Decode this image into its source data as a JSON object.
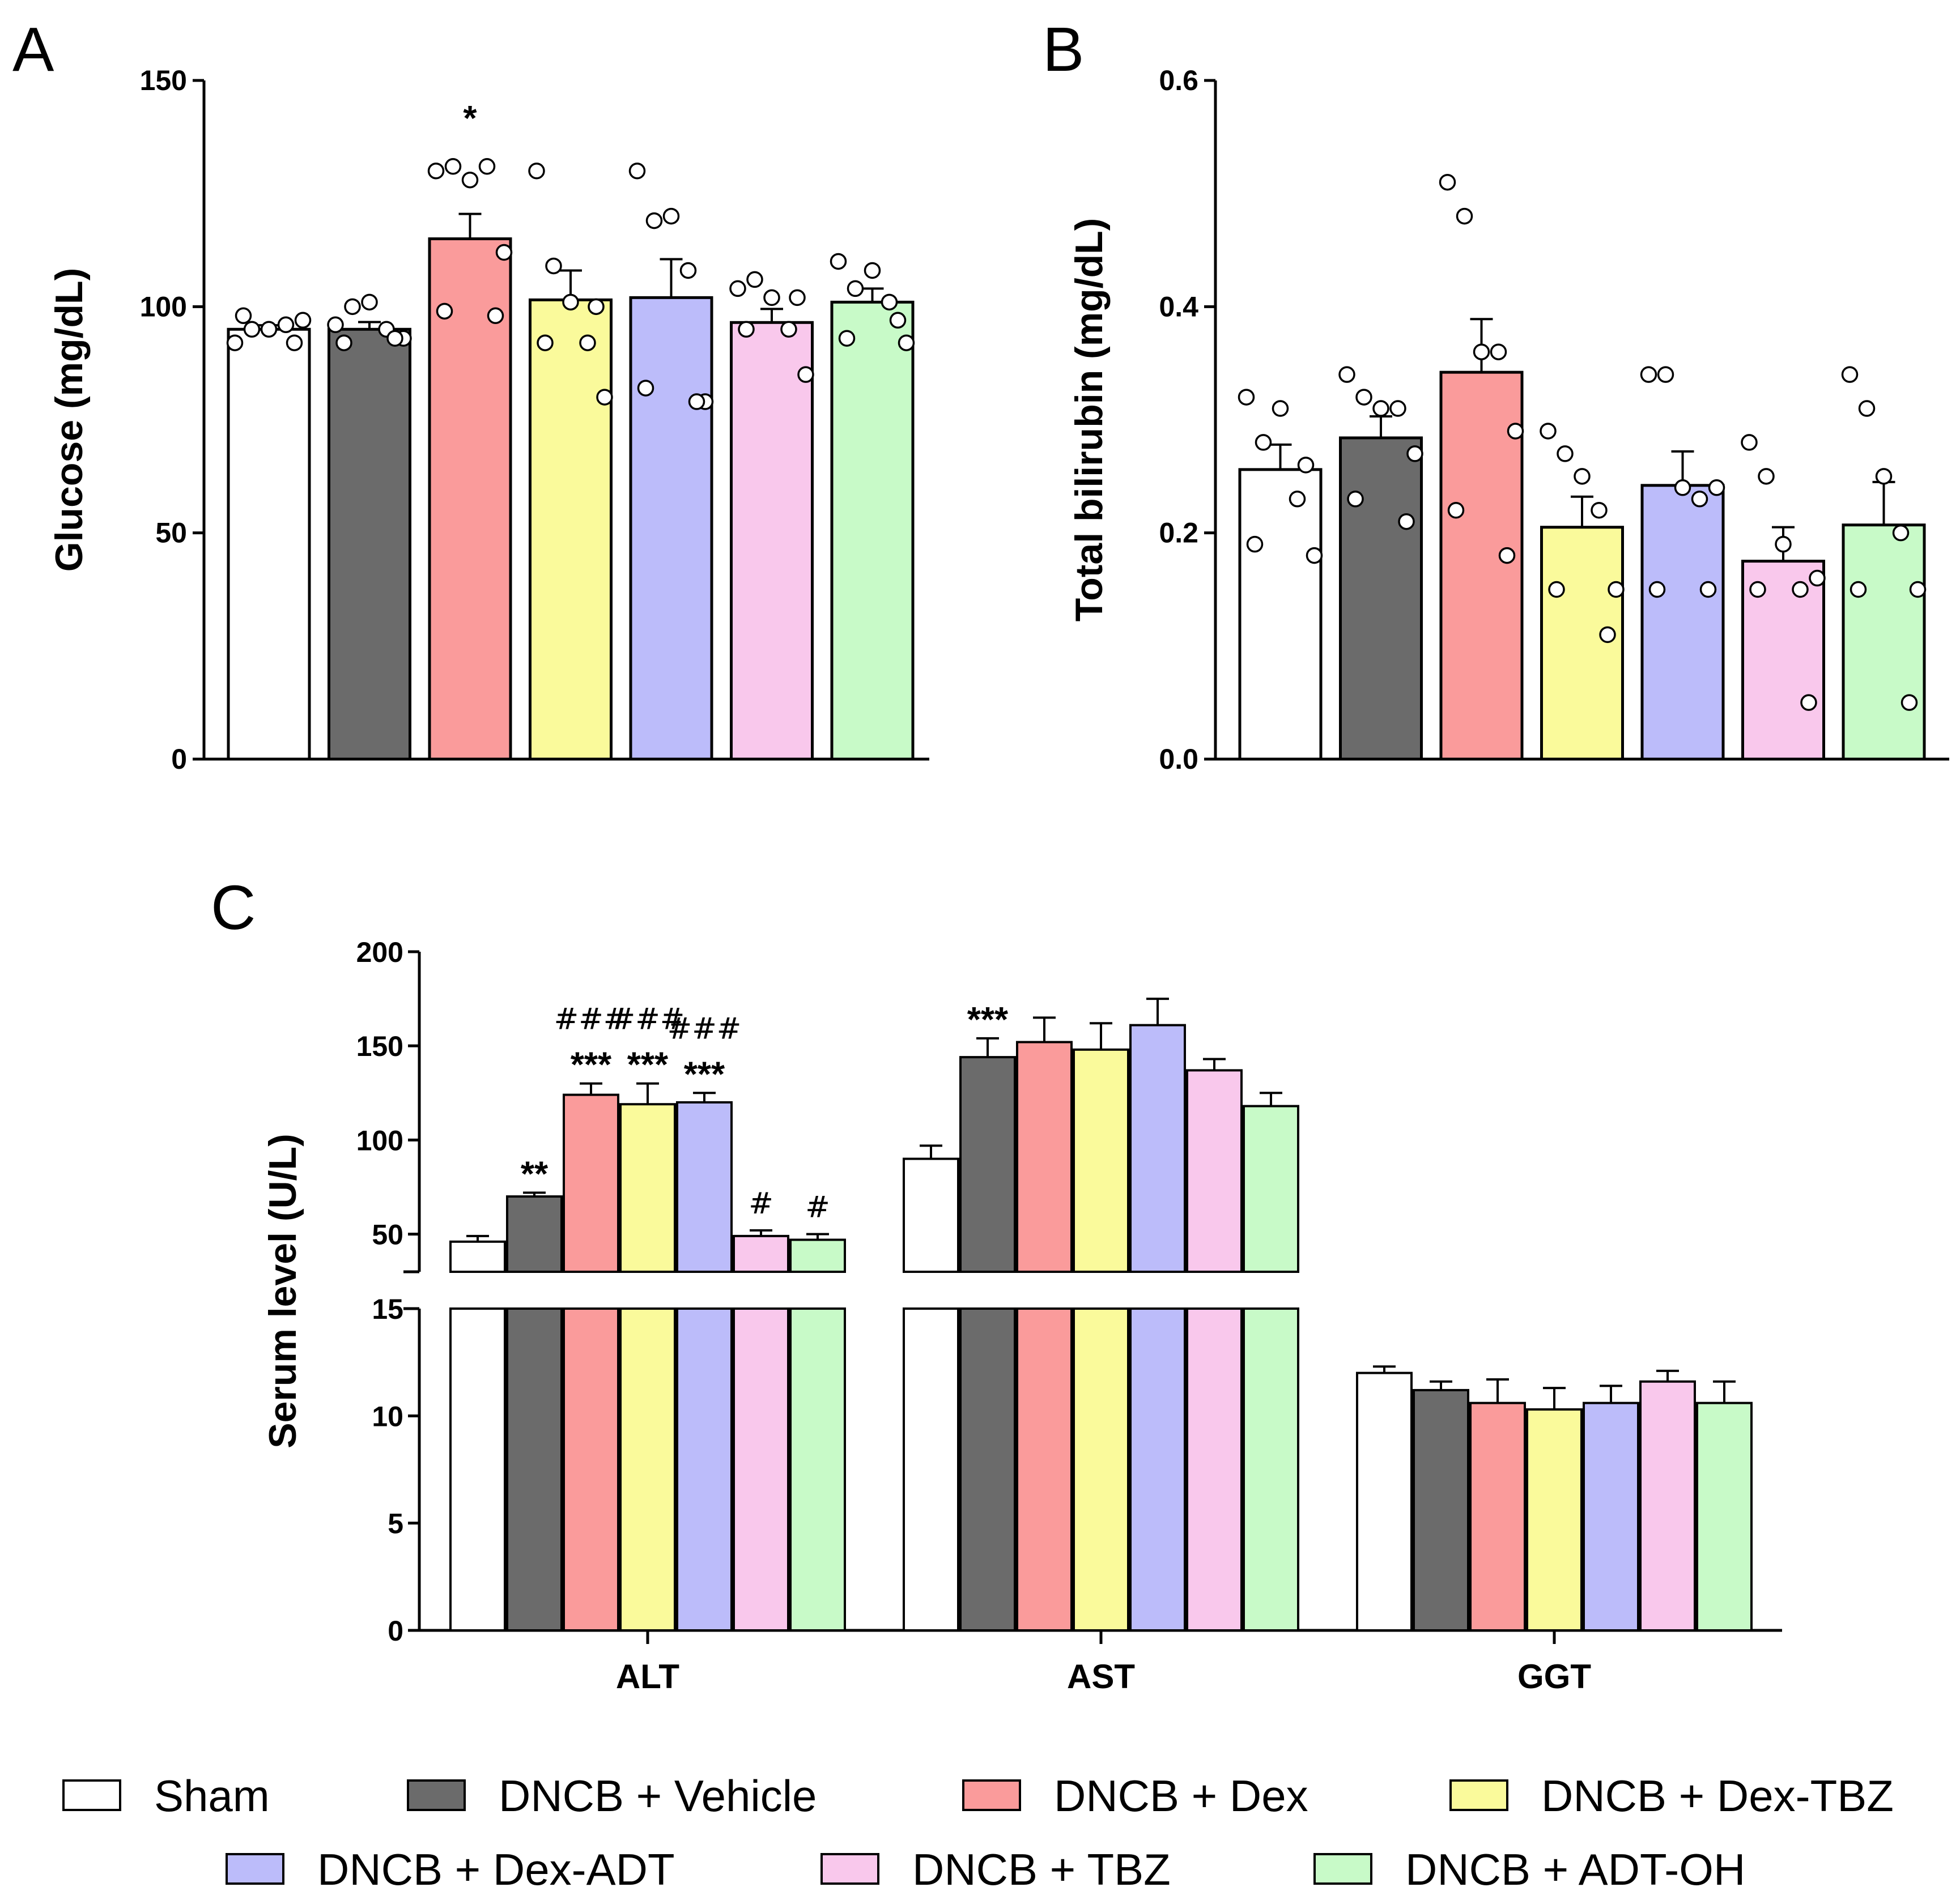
{
  "legend": [
    {
      "label": "Sham",
      "color": "#ffffff"
    },
    {
      "label": "DNCB + Vehicle",
      "color": "#6b6b6b"
    },
    {
      "label": "DNCB + Dex",
      "color": "#fa9b9b"
    },
    {
      "label": "DNCB + Dex-TBZ",
      "color": "#fafa9b"
    },
    {
      "label": "DNCB + Dex-ADT",
      "color": "#bcbcfa"
    },
    {
      "label": "DNCB + TBZ",
      "color": "#f9c8ec"
    },
    {
      "label": "DNCB + ADT-OH",
      "color": "#c8fac8"
    }
  ],
  "chart_data": [
    {
      "panel": "A",
      "type": "bar",
      "ylabel": "Glucose (mg/dL)",
      "ylim": [
        0,
        150
      ],
      "yticks": [
        0,
        50,
        100,
        150
      ],
      "groups": [
        "Sham",
        "DNCB + Vehicle",
        "DNCB + Dex",
        "DNCB + Dex-TBZ",
        "DNCB + Dex-ADT",
        "DNCB + TBZ",
        "DNCB + ADT-OH"
      ],
      "values": [
        95,
        95,
        115,
        101.5,
        102,
        96.5,
        101
      ],
      "sem": [
        0.9,
        1.6,
        5.5,
        6.5,
        8.5,
        3,
        3
      ],
      "points": [
        [
          92,
          95,
          95,
          96,
          97,
          98,
          92
        ],
        [
          96,
          100,
          101,
          95,
          93,
          92,
          93
        ],
        [
          130,
          131,
          128,
          131,
          112,
          99,
          98
        ],
        [
          130,
          109,
          101,
          92,
          80,
          92,
          100
        ],
        [
          130,
          119,
          120,
          108,
          79,
          82,
          79
        ],
        [
          104,
          106,
          102,
          95,
          85,
          95,
          102
        ],
        [
          110,
          104,
          108,
          101,
          92,
          93,
          97
        ]
      ],
      "annotations": [
        {
          "group": 2,
          "text": "*"
        }
      ]
    },
    {
      "panel": "B",
      "type": "bar",
      "ylabel": "Total bilirubin (mg/dL)",
      "ylim": [
        0,
        0.6
      ],
      "yticks": [
        "0.0",
        "0.2",
        "0.4",
        "0.6"
      ],
      "groups": [
        "Sham",
        "DNCB + Vehicle",
        "DNCB + Dex",
        "DNCB + Dex-TBZ",
        "DNCB + Dex-ADT",
        "DNCB + TBZ",
        "DNCB + ADT-OH"
      ],
      "values": [
        0.256,
        0.284,
        0.342,
        0.205,
        0.242,
        0.175,
        0.207
      ],
      "sem": [
        0.022,
        0.019,
        0.047,
        0.027,
        0.03,
        0.03,
        0.038
      ],
      "points": [
        [
          0.32,
          0.28,
          0.31,
          0.23,
          0.18,
          0.19,
          0.26
        ],
        [
          0.34,
          0.32,
          0.31,
          0.31,
          0.27,
          0.23,
          0.21
        ],
        [
          0.51,
          0.48,
          0.36,
          0.36,
          0.29,
          0.22,
          0.18
        ],
        [
          0.29,
          0.27,
          0.25,
          0.22,
          0.15,
          0.15,
          0.11
        ],
        [
          0.34,
          0.34,
          0.24,
          0.23,
          0.24,
          0.15,
          0.15
        ],
        [
          0.28,
          0.25,
          0.19,
          0.15,
          0.16,
          0.15,
          0.05
        ],
        [
          0.34,
          0.31,
          0.25,
          0.2,
          0.15,
          0.15,
          0.05
        ]
      ]
    },
    {
      "panel": "C",
      "type": "bar",
      "ylabel": "Serum level (U/L)",
      "categories": [
        "ALT",
        "AST",
        "GGT"
      ],
      "y_break": {
        "lower": [
          0,
          15
        ],
        "upper": [
          30,
          200
        ]
      },
      "yticks_lower": [
        0,
        5,
        10,
        15
      ],
      "yticks_upper": [
        50,
        100,
        150,
        200
      ],
      "series": [
        {
          "name": "Sham",
          "values": [
            46,
            90,
            12
          ],
          "sem": [
            3,
            7,
            0.3
          ]
        },
        {
          "name": "DNCB + Vehicle",
          "values": [
            70,
            144,
            11.2
          ],
          "sem": [
            2,
            10,
            0.4
          ]
        },
        {
          "name": "DNCB + Dex",
          "values": [
            124,
            152,
            10.6
          ],
          "sem": [
            6,
            13,
            1.1
          ]
        },
        {
          "name": "DNCB + Dex-TBZ",
          "values": [
            119,
            148,
            10.3
          ],
          "sem": [
            11,
            14,
            1
          ]
        },
        {
          "name": "DNCB + Dex-ADT",
          "values": [
            120,
            161,
            10.6
          ],
          "sem": [
            5,
            14,
            0.8
          ]
        },
        {
          "name": "DNCB + TBZ",
          "values": [
            49,
            137,
            11.6
          ],
          "sem": [
            3,
            6,
            0.5
          ]
        },
        {
          "name": "DNCB + ADT-OH",
          "values": [
            47,
            118,
            10.6
          ],
          "sem": [
            3,
            7,
            1
          ]
        }
      ],
      "annotations": [
        {
          "category": 0,
          "series": 1,
          "stars": "**",
          "hashes": ""
        },
        {
          "category": 0,
          "series": 2,
          "stars": "***",
          "hashes": "###"
        },
        {
          "category": 0,
          "series": 3,
          "stars": "***",
          "hashes": "###"
        },
        {
          "category": 0,
          "series": 4,
          "stars": "***",
          "hashes": "###"
        },
        {
          "category": 0,
          "series": 5,
          "stars": "",
          "hashes": "#"
        },
        {
          "category": 0,
          "series": 6,
          "stars": "",
          "hashes": "#"
        },
        {
          "category": 1,
          "series": 1,
          "stars": "***",
          "hashes": ""
        }
      ]
    }
  ],
  "panel_labels": [
    "A",
    "B",
    "C"
  ]
}
